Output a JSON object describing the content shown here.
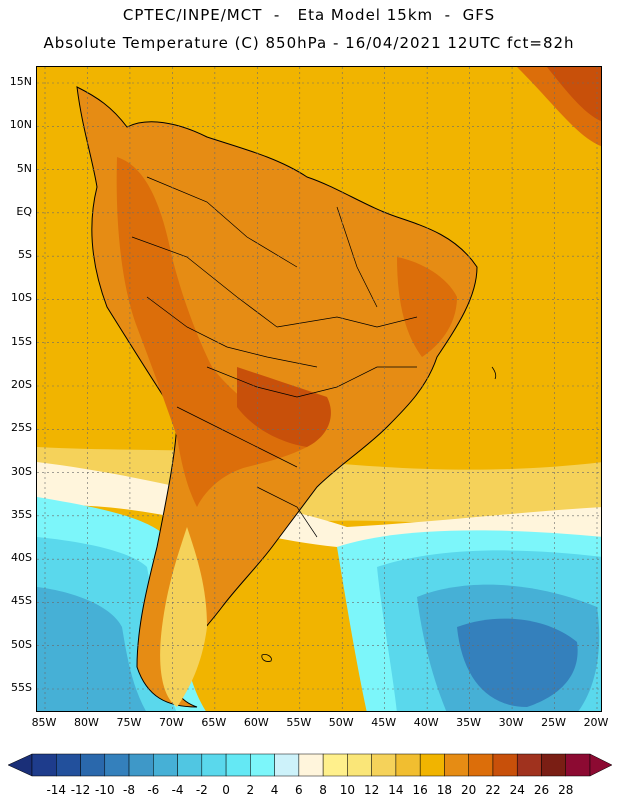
{
  "header": {
    "line1": "CPTEC/INPE/MCT  -   Eta Model 15km  -  GFS",
    "line2": "Absolute Temperature (C) 850hPa - 16/04/2021 12UTC fct=82h"
  },
  "map": {
    "lat_labels": [
      "15N",
      "10N",
      "5N",
      "EQ",
      "5S",
      "10S",
      "15S",
      "20S",
      "25S",
      "30S",
      "35S",
      "40S",
      "45S",
      "50S",
      "55S"
    ],
    "lon_labels": [
      "85W",
      "80W",
      "75W",
      "70W",
      "65W",
      "60W",
      "55W",
      "50W",
      "45W",
      "40W",
      "35W",
      "30W",
      "25W",
      "20W"
    ],
    "ocean_base_color": "#f1b400"
  },
  "legend": {
    "tick_labels": [
      "-14",
      "-12",
      "-10",
      "-8",
      "-6",
      "-4",
      "-2",
      "0",
      "2",
      "4",
      "6",
      "8",
      "10",
      "12",
      "14",
      "16",
      "18",
      "20",
      "22",
      "24",
      "26",
      "28"
    ],
    "colors": [
      "#1e3c8c",
      "#22509c",
      "#2a68ac",
      "#3480bc",
      "#3e98c8",
      "#46b0d6",
      "#50c6e2",
      "#5ad8ec",
      "#64e8f4",
      "#7cf6fa",
      "#cdf2fa",
      "#fff5dc",
      "#fff08c",
      "#fae678",
      "#f5d25a",
      "#f1be30",
      "#f1b400",
      "#e68c14",
      "#dc6e0a",
      "#c8500a",
      "#a0321e",
      "#7a1e14",
      "#8c0a32"
    ],
    "low_arrow_color": "#1a2f78",
    "high_arrow_color": "#8c0a32"
  }
}
